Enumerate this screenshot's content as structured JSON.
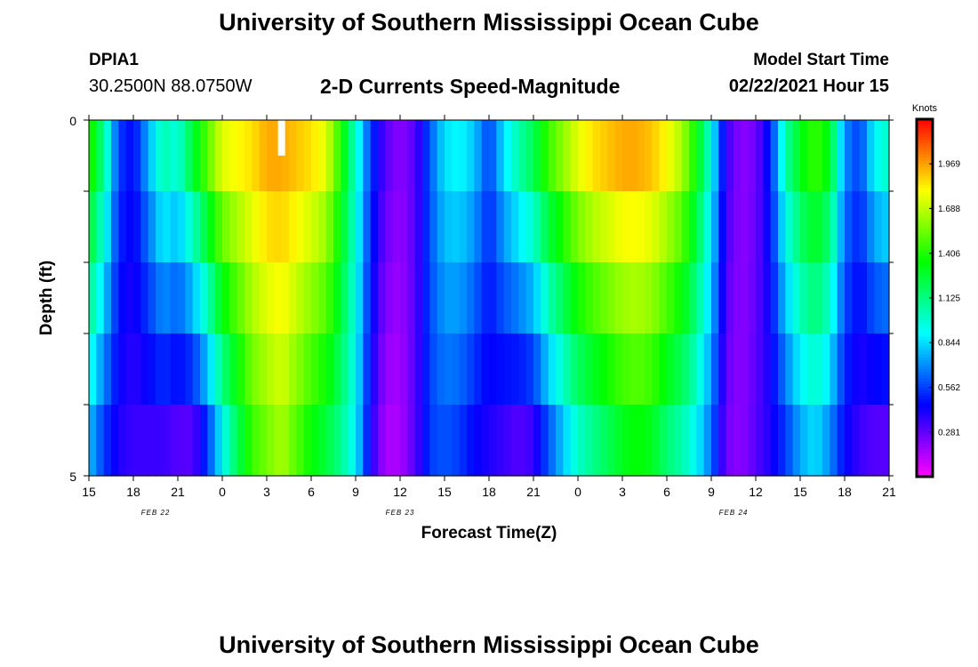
{
  "header": {
    "title": "University of Southern Mississippi Ocean Cube",
    "station_id": "DPIA1",
    "station_coords": "30.2500N 88.0750W",
    "plot_title": "2-D Currents Speed-Magnitude",
    "model_start_label": "Model Start Time",
    "model_start_value": "02/22/2021 Hour 15"
  },
  "footer": {
    "title": "University of Southern Mississippi Ocean Cube"
  },
  "chart_data": {
    "type": "heatmap",
    "title": "2-D Currents Speed-Magnitude",
    "xlabel": "Forecast Time(Z)",
    "ylabel": "Depth (ft)",
    "y_ticks": [
      "0",
      "5"
    ],
    "ylim": [
      0,
      5
    ],
    "x_tick_labels": [
      "15",
      "18",
      "21",
      "0",
      "3",
      "6",
      "9",
      "12",
      "15",
      "18",
      "21",
      "0",
      "3",
      "6",
      "9",
      "12",
      "15",
      "18",
      "21"
    ],
    "date_labels": [
      {
        "text": "FEB 22",
        "tick_index": 1.5
      },
      {
        "text": "FEB 23",
        "tick_index": 7
      },
      {
        "text": "FEB 24",
        "tick_index": 14.5
      }
    ],
    "colorbar": {
      "unit": "Knots",
      "ticks": [
        "1.969",
        "1.688",
        "1.406",
        "1.125",
        "0.844",
        "0.562",
        "0.281"
      ],
      "tick_values": [
        1.969,
        1.688,
        1.406,
        1.125,
        0.844,
        0.562,
        0.281
      ],
      "range": [
        0.0,
        2.25
      ]
    },
    "time_start_hour": 15,
    "time_end_hour": 69,
    "depth_layers": 5,
    "missing_marker_hour": 28,
    "speed_keypoints_layer0": [
      [
        15,
        1.45
      ],
      [
        16,
        1.1
      ],
      [
        17,
        0.55
      ],
      [
        18,
        0.45
      ],
      [
        19,
        0.75
      ],
      [
        20,
        1.05
      ],
      [
        21,
        0.95
      ],
      [
        22,
        1.25
      ],
      [
        23,
        1.5
      ],
      [
        24,
        1.75
      ],
      [
        25,
        1.8
      ],
      [
        26,
        1.85
      ],
      [
        27,
        1.95
      ],
      [
        28,
        1.95
      ],
      [
        29,
        1.9
      ],
      [
        30,
        1.85
      ],
      [
        31,
        1.75
      ],
      [
        32,
        1.4
      ],
      [
        33,
        1.0
      ],
      [
        34,
        0.55
      ],
      [
        35,
        0.3
      ],
      [
        36,
        0.2
      ],
      [
        37,
        0.3
      ],
      [
        38,
        0.6
      ],
      [
        39,
        0.85
      ],
      [
        40,
        0.9
      ],
      [
        41,
        0.8
      ],
      [
        42,
        0.55
      ],
      [
        43,
        0.85
      ],
      [
        44,
        1.05
      ],
      [
        45,
        1.2
      ],
      [
        46,
        1.45
      ],
      [
        47,
        1.6
      ],
      [
        48,
        1.75
      ],
      [
        49,
        1.85
      ],
      [
        50,
        1.9
      ],
      [
        51,
        1.95
      ],
      [
        52,
        1.95
      ],
      [
        53,
        1.9
      ],
      [
        54,
        1.8
      ],
      [
        55,
        1.65
      ],
      [
        56,
        1.35
      ],
      [
        57,
        0.95
      ],
      [
        58,
        0.35
      ],
      [
        59,
        0.2
      ],
      [
        60,
        0.25
      ],
      [
        61,
        0.5
      ],
      [
        62,
        1.05
      ],
      [
        63,
        1.3
      ],
      [
        64,
        1.45
      ],
      [
        65,
        1.3
      ],
      [
        66,
        0.7
      ],
      [
        67,
        0.55
      ],
      [
        68,
        0.9
      ],
      [
        69,
        1.0
      ]
    ],
    "speed_keypoints_layer4": [
      [
        15,
        0.8
      ],
      [
        16,
        0.55
      ],
      [
        17,
        0.4
      ],
      [
        18,
        0.35
      ],
      [
        19,
        0.35
      ],
      [
        20,
        0.35
      ],
      [
        21,
        0.3
      ],
      [
        22,
        0.3
      ],
      [
        23,
        0.55
      ],
      [
        24,
        0.9
      ],
      [
        25,
        1.2
      ],
      [
        26,
        1.45
      ],
      [
        27,
        1.55
      ],
      [
        28,
        1.65
      ],
      [
        29,
        1.5
      ],
      [
        30,
        1.35
      ],
      [
        31,
        1.25
      ],
      [
        32,
        1.1
      ],
      [
        33,
        0.9
      ],
      [
        34,
        0.4
      ],
      [
        35,
        0.15
      ],
      [
        36,
        0.15
      ],
      [
        37,
        0.3
      ],
      [
        38,
        0.55
      ],
      [
        39,
        0.6
      ],
      [
        40,
        0.55
      ],
      [
        41,
        0.45
      ],
      [
        42,
        0.4
      ],
      [
        43,
        0.35
      ],
      [
        44,
        0.3
      ],
      [
        45,
        0.35
      ],
      [
        46,
        0.6
      ],
      [
        47,
        0.8
      ],
      [
        48,
        1.0
      ],
      [
        49,
        1.1
      ],
      [
        50,
        1.2
      ],
      [
        51,
        1.3
      ],
      [
        52,
        1.35
      ],
      [
        53,
        1.3
      ],
      [
        54,
        1.15
      ],
      [
        55,
        1.05
      ],
      [
        56,
        0.9
      ],
      [
        57,
        0.65
      ],
      [
        58,
        0.25
      ],
      [
        59,
        0.2
      ],
      [
        60,
        0.3
      ],
      [
        61,
        0.4
      ],
      [
        62,
        0.55
      ],
      [
        63,
        0.75
      ],
      [
        64,
        0.85
      ],
      [
        65,
        0.7
      ],
      [
        66,
        0.45
      ],
      [
        67,
        0.35
      ],
      [
        68,
        0.3
      ],
      [
        69,
        0.3
      ]
    ]
  }
}
